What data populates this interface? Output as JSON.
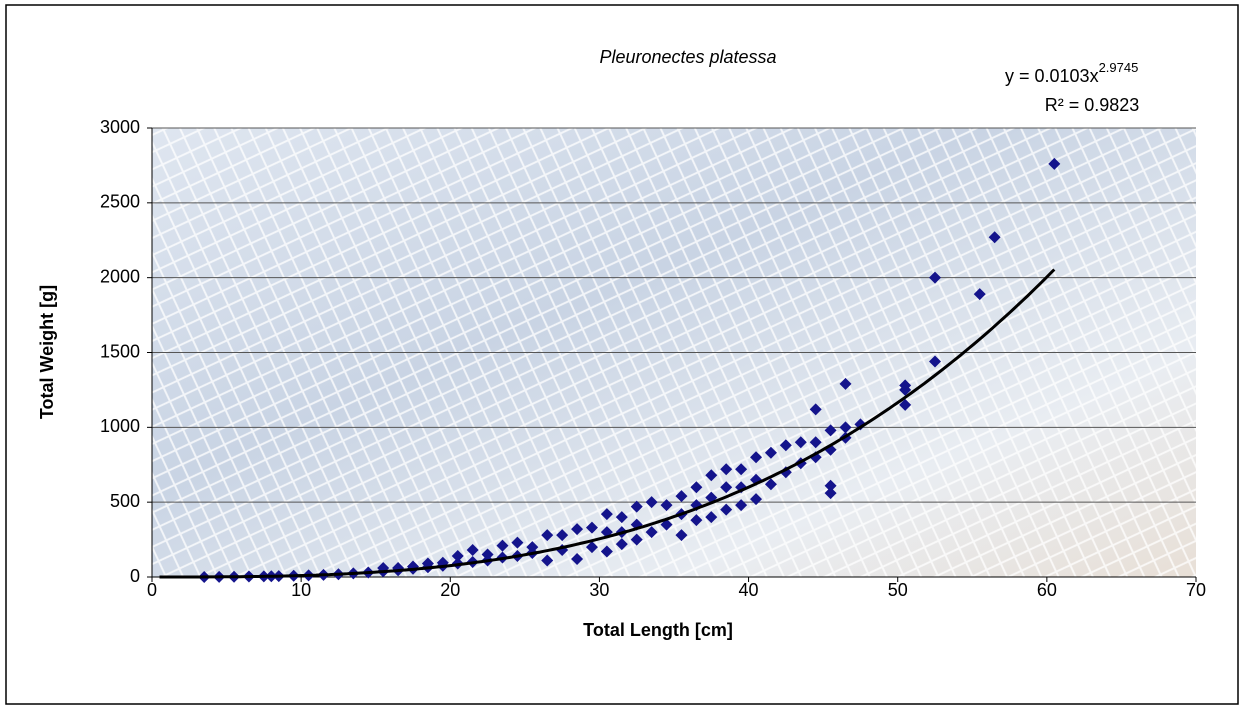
{
  "chart_data": {
    "type": "scatter",
    "title": "Pleuronectes platessa",
    "x_label": "Total Length [cm]",
    "y_label": "Total Weight [g]",
    "xlim": [
      0,
      70
    ],
    "xticks": [
      0,
      10,
      20,
      30,
      40,
      50,
      60,
      70
    ],
    "ylim": [
      0,
      3000
    ],
    "yticks": [
      0,
      500,
      1000,
      1500,
      2000,
      2500,
      3000
    ],
    "grid": true,
    "series": [
      {
        "color": "#14148c",
        "x": [
          3.5,
          4.5,
          5.5,
          6.5,
          7.5,
          8,
          8.5,
          9.5,
          10.5,
          11.5,
          12.5,
          13.5,
          14.5,
          15.5,
          15.5,
          16.5,
          16.5,
          17.5,
          17.5,
          18.5,
          18.5,
          19.5,
          19.5,
          20.5,
          20.5,
          21.5,
          21.5,
          22.5,
          22.5,
          23.5,
          23.5,
          24.5,
          24.5,
          25.5,
          25.5,
          26.5,
          26.5,
          27.5,
          27.5,
          28.5,
          28.5,
          29.5,
          29.5,
          30.5,
          30.5,
          30.5,
          31.5,
          31.5,
          31.5,
          32.5,
          32.5,
          32.5,
          33.5,
          33.5,
          34.5,
          34.5,
          35.5,
          35.5,
          35.5,
          36.5,
          36.5,
          36.5,
          37.5,
          37.5,
          37.5,
          38.5,
          38.5,
          38.5,
          39.5,
          39.5,
          39.5,
          40.5,
          40.5,
          40.5,
          41.5,
          41.5,
          42.5,
          42.5,
          43.5,
          43.5,
          44.5,
          44.5,
          44.5,
          45.5,
          45.5,
          45.5,
          45.5,
          46.5,
          46.5,
          46.5,
          47.5,
          50.5,
          50.5,
          50.5,
          52.5,
          52.5,
          55.5,
          56.5,
          60.5
        ],
        "values": [
          0,
          1,
          2,
          3,
          4,
          5,
          6,
          8,
          11,
          14,
          18,
          24,
          30,
          38,
          60,
          45,
          60,
          55,
          70,
          65,
          90,
          75,
          95,
          90,
          140,
          100,
          180,
          110,
          150,
          130,
          210,
          140,
          230,
          160,
          200,
          110,
          280,
          180,
          280,
          120,
          320,
          200,
          330,
          170,
          420,
          300,
          220,
          400,
          300,
          250,
          470,
          350,
          300,
          500,
          350,
          480,
          280,
          540,
          420,
          380,
          600,
          480,
          400,
          680,
          530,
          450,
          720,
          600,
          480,
          720,
          600,
          520,
          800,
          650,
          620,
          830,
          700,
          880,
          760,
          900,
          800,
          1120,
          900,
          560,
          610,
          850,
          980,
          930,
          1290,
          1000,
          1020,
          1150,
          1250,
          1280,
          1440,
          2000,
          1890,
          2270,
          2760
        ]
      }
    ],
    "trendline": {
      "equation": "y = 0.0103x",
      "exponent_label": "2.9745",
      "r_squared_label": "R² = 0.9823",
      "coefficient": 0.0103,
      "exponent": 2.9745,
      "x_range": [
        0.5,
        60.5
      ],
      "color": "#000000"
    }
  }
}
